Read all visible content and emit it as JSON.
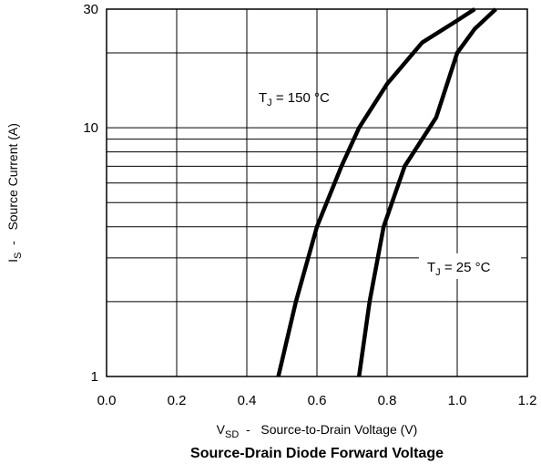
{
  "chart_data": {
    "type": "line",
    "title": "Source-Drain Diode Forward Voltage",
    "xlabel": {
      "main": "V",
      "sub": "SD",
      "rest": "  -   Source-to-Drain Voltage (V)"
    },
    "ylabel": {
      "main": "I",
      "sub": "S",
      "rest": "  -   Source Current (A)"
    },
    "xlim": [
      0.0,
      1.2
    ],
    "ylim": [
      1,
      30
    ],
    "y_scale": "log",
    "grid": true,
    "x_ticks": [
      0.0,
      0.2,
      0.4,
      0.6,
      0.8,
      1.0,
      1.2
    ],
    "x_tick_labels": [
      "0.0",
      "0.2",
      "0.4",
      "0.6",
      "0.8",
      "1.0",
      "1.2"
    ],
    "y_ticks": [
      1,
      10,
      30
    ],
    "y_tick_labels": [
      "1",
      "10",
      "30"
    ],
    "y_gridlines": [
      2,
      3,
      4,
      5,
      6,
      7,
      8,
      9,
      10,
      20
    ],
    "series": [
      {
        "label_main": "T",
        "label_sub": "J",
        "label_rest": " = 150 °C",
        "x": [
          0.49,
          0.54,
          0.6,
          0.67,
          0.72,
          0.8,
          0.9,
          1.0,
          1.05
        ],
        "y": [
          1,
          2,
          4,
          7,
          10,
          15,
          22,
          27,
          30
        ]
      },
      {
        "label_main": "T",
        "label_sub": "J",
        "label_rest": " = 25 °C",
        "x": [
          0.72,
          0.75,
          0.79,
          0.85,
          0.94,
          1.0,
          1.05,
          1.11
        ],
        "y": [
          1,
          2,
          4,
          7,
          11,
          20,
          25,
          30
        ]
      }
    ]
  }
}
